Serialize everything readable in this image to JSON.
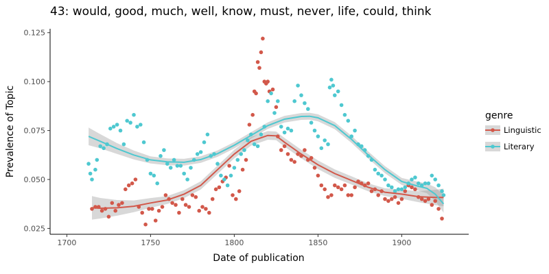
{
  "chart_data": {
    "type": "scatter",
    "title": "43: would, good, much, well, know, must, never, life, could, think",
    "xlabel": "Date of publication",
    "ylabel": "Prevalence of Topic",
    "xlim": [
      1690,
      1940
    ],
    "ylim": [
      0.022,
      0.127
    ],
    "x_ticks": [
      1700,
      1750,
      1800,
      1850,
      1900
    ],
    "y_ticks": [
      0.025,
      0.05,
      0.075,
      0.1,
      0.125
    ],
    "x_tick_labels": [
      "1700",
      "1750",
      "1800",
      "1850",
      "1900"
    ],
    "y_tick_labels": [
      "0.025",
      "0.050",
      "0.075",
      "0.100",
      "0.125"
    ],
    "grid": false,
    "legend": {
      "title": "genre",
      "placement": "right",
      "entries": [
        {
          "label": "Linguistic",
          "color": "#d2584a"
        },
        {
          "label": "Literary",
          "color": "#4ec8d0"
        }
      ]
    },
    "series": [
      {
        "name": "Linguistic",
        "color": "#d2584a",
        "points": [
          [
            1715,
            0.035
          ],
          [
            1717,
            0.036
          ],
          [
            1719,
            0.036
          ],
          [
            1721,
            0.034
          ],
          [
            1723,
            0.035
          ],
          [
            1725,
            0.031
          ],
          [
            1727,
            0.038
          ],
          [
            1729,
            0.034
          ],
          [
            1731,
            0.037
          ],
          [
            1733,
            0.038
          ],
          [
            1735,
            0.045
          ],
          [
            1737,
            0.047
          ],
          [
            1739,
            0.048
          ],
          [
            1741,
            0.05
          ],
          [
            1743,
            0.036
          ],
          [
            1745,
            0.033
          ],
          [
            1747,
            0.027
          ],
          [
            1749,
            0.035
          ],
          [
            1751,
            0.035
          ],
          [
            1753,
            0.029
          ],
          [
            1755,
            0.034
          ],
          [
            1757,
            0.036
          ],
          [
            1759,
            0.042
          ],
          [
            1761,
            0.04
          ],
          [
            1763,
            0.038
          ],
          [
            1765,
            0.037
          ],
          [
            1767,
            0.033
          ],
          [
            1769,
            0.04
          ],
          [
            1771,
            0.037
          ],
          [
            1773,
            0.036
          ],
          [
            1775,
            0.042
          ],
          [
            1777,
            0.041
          ],
          [
            1779,
            0.034
          ],
          [
            1781,
            0.036
          ],
          [
            1783,
            0.035
          ],
          [
            1785,
            0.033
          ],
          [
            1787,
            0.04
          ],
          [
            1789,
            0.045
          ],
          [
            1791,
            0.046
          ],
          [
            1793,
            0.049
          ],
          [
            1795,
            0.051
          ],
          [
            1797,
            0.057
          ],
          [
            1799,
            0.042
          ],
          [
            1801,
            0.04
          ],
          [
            1803,
            0.044
          ],
          [
            1805,
            0.055
          ],
          [
            1807,
            0.06
          ],
          [
            1809,
            0.078
          ],
          [
            1811,
            0.083
          ],
          [
            1812,
            0.095
          ],
          [
            1813,
            0.094
          ],
          [
            1814,
            0.11
          ],
          [
            1815,
            0.107
          ],
          [
            1816,
            0.115
          ],
          [
            1817,
            0.122
          ],
          [
            1818,
            0.1
          ],
          [
            1819,
            0.099
          ],
          [
            1820,
            0.1
          ],
          [
            1821,
            0.095
          ],
          [
            1823,
            0.096
          ],
          [
            1825,
            0.087
          ],
          [
            1826,
            0.072
          ],
          [
            1828,
            0.065
          ],
          [
            1830,
            0.067
          ],
          [
            1832,
            0.063
          ],
          [
            1834,
            0.06
          ],
          [
            1836,
            0.059
          ],
          [
            1838,
            0.063
          ],
          [
            1840,
            0.062
          ],
          [
            1842,
            0.065
          ],
          [
            1844,
            0.06
          ],
          [
            1846,
            0.061
          ],
          [
            1848,
            0.056
          ],
          [
            1850,
            0.052
          ],
          [
            1852,
            0.047
          ],
          [
            1854,
            0.045
          ],
          [
            1856,
            0.041
          ],
          [
            1858,
            0.042
          ],
          [
            1860,
            0.047
          ],
          [
            1862,
            0.046
          ],
          [
            1864,
            0.045
          ],
          [
            1866,
            0.047
          ],
          [
            1868,
            0.042
          ],
          [
            1870,
            0.042
          ],
          [
            1872,
            0.046
          ],
          [
            1874,
            0.049
          ],
          [
            1876,
            0.048
          ],
          [
            1878,
            0.047
          ],
          [
            1880,
            0.048
          ],
          [
            1882,
            0.044
          ],
          [
            1884,
            0.045
          ],
          [
            1886,
            0.042
          ],
          [
            1888,
            0.044
          ],
          [
            1890,
            0.04
          ],
          [
            1892,
            0.039
          ],
          [
            1894,
            0.04
          ],
          [
            1896,
            0.041
          ],
          [
            1898,
            0.038
          ],
          [
            1900,
            0.04
          ],
          [
            1902,
            0.044
          ],
          [
            1904,
            0.047
          ],
          [
            1906,
            0.046
          ],
          [
            1908,
            0.045
          ],
          [
            1910,
            0.041
          ],
          [
            1912,
            0.04
          ],
          [
            1914,
            0.039
          ],
          [
            1916,
            0.04
          ],
          [
            1918,
            0.037
          ],
          [
            1920,
            0.039
          ],
          [
            1922,
            0.035
          ],
          [
            1924,
            0.03
          ]
        ],
        "trend": [
          [
            1715,
            0.0355
          ],
          [
            1720,
            0.0353
          ],
          [
            1730,
            0.0355
          ],
          [
            1740,
            0.0363
          ],
          [
            1750,
            0.038
          ],
          [
            1760,
            0.0395
          ],
          [
            1770,
            0.0425
          ],
          [
            1780,
            0.047
          ],
          [
            1790,
            0.055
          ],
          [
            1800,
            0.063
          ],
          [
            1810,
            0.0695
          ],
          [
            1820,
            0.0725
          ],
          [
            1825,
            0.0723
          ],
          [
            1830,
            0.069
          ],
          [
            1840,
            0.063
          ],
          [
            1850,
            0.0575
          ],
          [
            1860,
            0.053
          ],
          [
            1870,
            0.0495
          ],
          [
            1880,
            0.046
          ],
          [
            1890,
            0.0435
          ],
          [
            1900,
            0.0425
          ],
          [
            1910,
            0.0412
          ],
          [
            1920,
            0.0408
          ],
          [
            1925,
            0.0408
          ]
        ],
        "band_halfwidth": [
          [
            1715,
            0.006
          ],
          [
            1725,
            0.0045
          ],
          [
            1740,
            0.003
          ],
          [
            1760,
            0.002
          ],
          [
            1800,
            0.0022
          ],
          [
            1850,
            0.0022
          ],
          [
            1890,
            0.002
          ],
          [
            1910,
            0.0028
          ],
          [
            1925,
            0.0045
          ]
        ]
      },
      {
        "name": "Literary",
        "color": "#4ec8d0",
        "points": [
          [
            1713,
            0.058
          ],
          [
            1714,
            0.053
          ],
          [
            1715,
            0.05
          ],
          [
            1717,
            0.055
          ],
          [
            1718,
            0.06
          ],
          [
            1720,
            0.067
          ],
          [
            1722,
            0.066
          ],
          [
            1724,
            0.068
          ],
          [
            1726,
            0.076
          ],
          [
            1728,
            0.077
          ],
          [
            1730,
            0.078
          ],
          [
            1732,
            0.075
          ],
          [
            1734,
            0.068
          ],
          [
            1736,
            0.08
          ],
          [
            1738,
            0.079
          ],
          [
            1740,
            0.083
          ],
          [
            1742,
            0.077
          ],
          [
            1744,
            0.078
          ],
          [
            1746,
            0.069
          ],
          [
            1748,
            0.06
          ],
          [
            1750,
            0.053
          ],
          [
            1752,
            0.052
          ],
          [
            1754,
            0.048
          ],
          [
            1756,
            0.062
          ],
          [
            1758,
            0.065
          ],
          [
            1760,
            0.058
          ],
          [
            1762,
            0.056
          ],
          [
            1764,
            0.06
          ],
          [
            1766,
            0.057
          ],
          [
            1768,
            0.057
          ],
          [
            1770,
            0.053
          ],
          [
            1772,
            0.05
          ],
          [
            1774,
            0.056
          ],
          [
            1776,
            0.06
          ],
          [
            1778,
            0.063
          ],
          [
            1780,
            0.064
          ],
          [
            1782,
            0.069
          ],
          [
            1784,
            0.073
          ],
          [
            1786,
            0.062
          ],
          [
            1788,
            0.063
          ],
          [
            1790,
            0.058
          ],
          [
            1792,
            0.052
          ],
          [
            1794,
            0.05
          ],
          [
            1796,
            0.047
          ],
          [
            1798,
            0.052
          ],
          [
            1800,
            0.056
          ],
          [
            1802,
            0.06
          ],
          [
            1804,
            0.063
          ],
          [
            1806,
            0.065
          ],
          [
            1808,
            0.07
          ],
          [
            1810,
            0.073
          ],
          [
            1812,
            0.068
          ],
          [
            1814,
            0.067
          ],
          [
            1816,
            0.073
          ],
          [
            1818,
            0.077
          ],
          [
            1820,
            0.09
          ],
          [
            1822,
            0.094
          ],
          [
            1824,
            0.084
          ],
          [
            1826,
            0.09
          ],
          [
            1828,
            0.077
          ],
          [
            1830,
            0.074
          ],
          [
            1832,
            0.076
          ],
          [
            1834,
            0.075
          ],
          [
            1836,
            0.09
          ],
          [
            1838,
            0.098
          ],
          [
            1840,
            0.093
          ],
          [
            1842,
            0.089
          ],
          [
            1844,
            0.086
          ],
          [
            1846,
            0.079
          ],
          [
            1848,
            0.075
          ],
          [
            1850,
            0.072
          ],
          [
            1852,
            0.066
          ],
          [
            1854,
            0.07
          ],
          [
            1856,
            0.068
          ],
          [
            1857,
            0.097
          ],
          [
            1858,
            0.101
          ],
          [
            1859,
            0.098
          ],
          [
            1860,
            0.093
          ],
          [
            1862,
            0.095
          ],
          [
            1864,
            0.088
          ],
          [
            1866,
            0.083
          ],
          [
            1868,
            0.08
          ],
          [
            1870,
            0.072
          ],
          [
            1872,
            0.075
          ],
          [
            1874,
            0.068
          ],
          [
            1876,
            0.067
          ],
          [
            1878,
            0.065
          ],
          [
            1880,
            0.062
          ],
          [
            1882,
            0.06
          ],
          [
            1884,
            0.055
          ],
          [
            1886,
            0.053
          ],
          [
            1888,
            0.052
          ],
          [
            1890,
            0.05
          ],
          [
            1892,
            0.047
          ],
          [
            1894,
            0.046
          ],
          [
            1896,
            0.044
          ],
          [
            1898,
            0.045
          ],
          [
            1900,
            0.045
          ],
          [
            1902,
            0.046
          ],
          [
            1904,
            0.048
          ],
          [
            1906,
            0.05
          ],
          [
            1908,
            0.051
          ],
          [
            1910,
            0.048
          ],
          [
            1912,
            0.047
          ],
          [
            1914,
            0.048
          ],
          [
            1916,
            0.048
          ],
          [
            1918,
            0.052
          ],
          [
            1920,
            0.05
          ],
          [
            1922,
            0.047
          ],
          [
            1924,
            0.044
          ],
          [
            1925,
            0.042
          ]
        ],
        "trend": [
          [
            1713,
            0.072
          ],
          [
            1720,
            0.0695
          ],
          [
            1730,
            0.0658
          ],
          [
            1740,
            0.0625
          ],
          [
            1750,
            0.06
          ],
          [
            1760,
            0.059
          ],
          [
            1770,
            0.0588
          ],
          [
            1780,
            0.0602
          ],
          [
            1790,
            0.0632
          ],
          [
            1800,
            0.0675
          ],
          [
            1810,
            0.0725
          ],
          [
            1820,
            0.0775
          ],
          [
            1830,
            0.0808
          ],
          [
            1840,
            0.0822
          ],
          [
            1845,
            0.0823
          ],
          [
            1850,
            0.0815
          ],
          [
            1860,
            0.0775
          ],
          [
            1870,
            0.0705
          ],
          [
            1880,
            0.0625
          ],
          [
            1890,
            0.055
          ],
          [
            1900,
            0.049
          ],
          [
            1910,
            0.0465
          ],
          [
            1915,
            0.0455
          ],
          [
            1920,
            0.0425
          ],
          [
            1925,
            0.0375
          ]
        ],
        "band_halfwidth": [
          [
            1713,
            0.0045
          ],
          [
            1725,
            0.003
          ],
          [
            1750,
            0.0018
          ],
          [
            1800,
            0.0016
          ],
          [
            1850,
            0.0018
          ],
          [
            1900,
            0.0018
          ],
          [
            1915,
            0.0025
          ],
          [
            1925,
            0.0045
          ]
        ]
      }
    ]
  }
}
